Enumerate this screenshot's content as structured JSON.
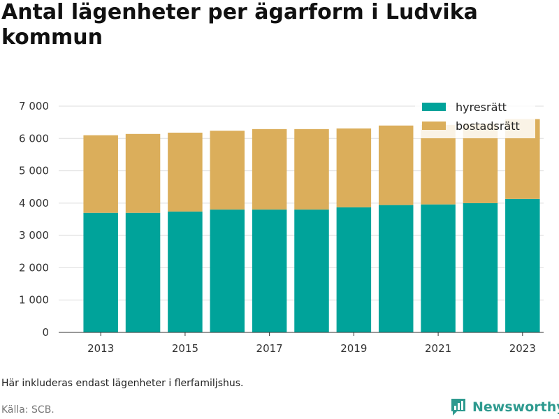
{
  "title": "Antal lägenheter per ägarform i Ludvika kommun",
  "note": "Här inkluderas endast lägenheter i flerfamiljshus.",
  "source": "Källa: SCB.",
  "brand": "Newsworthy",
  "colors": {
    "hyresratt": "#00a39a",
    "bostadsratt": "#dbae5b",
    "brand": "#2e9a8f"
  },
  "chart_data": {
    "type": "bar",
    "stacked": true,
    "categories": [
      "2013",
      "2014",
      "2015",
      "2016",
      "2017",
      "2018",
      "2019",
      "2020",
      "2021",
      "2022",
      "2023"
    ],
    "series": [
      {
        "name": "hyresrätt",
        "values": [
          3700,
          3700,
          3740,
          3800,
          3800,
          3800,
          3870,
          3940,
          3960,
          4000,
          4130
        ]
      },
      {
        "name": "bostadsrätt",
        "values": [
          2400,
          2440,
          2440,
          2440,
          2490,
          2490,
          2440,
          2460,
          2460,
          2460,
          2470
        ]
      }
    ],
    "x_tick_labels": [
      "2013",
      "2015",
      "2017",
      "2019",
      "2021",
      "2023"
    ],
    "y_ticks": [
      0,
      1000,
      2000,
      3000,
      4000,
      5000,
      6000,
      7000
    ],
    "y_tick_labels": [
      "0",
      "1 000",
      "2 000",
      "3 000",
      "4 000",
      "5 000",
      "6 000",
      "7 000"
    ],
    "ylim": [
      0,
      7000
    ],
    "grid": true,
    "legend_position": "top-right"
  }
}
